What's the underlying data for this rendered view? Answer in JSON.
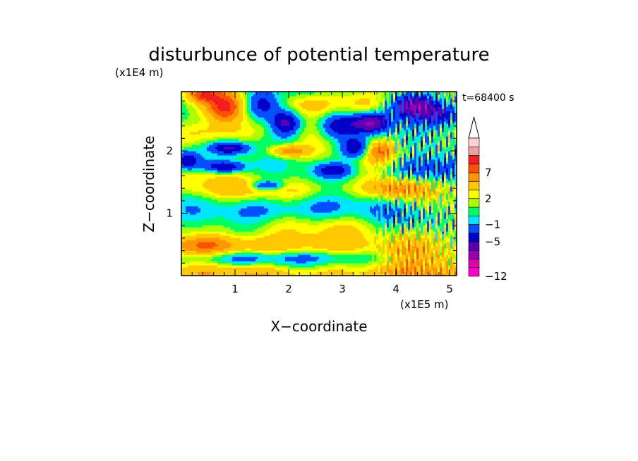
{
  "chart_data": {
    "type": "heatmap",
    "title": "disturbunce of potential temperature",
    "time_label": "t=68400 s",
    "xlabel": "X−coordinate",
    "ylabel": "Z−coordinate",
    "x_unit": "(x1E5 m)",
    "y_unit": "(x1E4 m)",
    "xlim": [
      0,
      5.13
    ],
    "ylim": [
      0,
      2.95
    ],
    "x_ticks": [
      "1",
      "2",
      "3",
      "4",
      "5"
    ],
    "y_ticks": [
      "1",
      "2"
    ],
    "grid": false,
    "colorbar": {
      "levels": [
        -12,
        -11,
        -9,
        -7,
        -5,
        -3,
        -1,
        0,
        1,
        2,
        3,
        5,
        7,
        9,
        11,
        13
      ],
      "tick_labels": [
        "−12",
        "−5",
        "−1",
        "2",
        "7"
      ],
      "tick_values": [
        -12,
        -5,
        -1,
        2,
        7
      ],
      "colors": [
        "#ff00c8",
        "#e000a8",
        "#9600b4",
        "#5a00b0",
        "#0000c8",
        "#0050ff",
        "#00e6ff",
        "#00ff64",
        "#aaff00",
        "#ffff00",
        "#ffc800",
        "#ff9600",
        "#ff5000",
        "#f01e1e",
        "#f5a0a0",
        "#ffd2d2"
      ],
      "extend": "max"
    },
    "features": [
      {
        "x": 2.4,
        "z": 0.02,
        "sx": 3.5,
        "sz": 0.1,
        "v": 3
      },
      {
        "x": 1.5,
        "z": 0.5,
        "sx": 1.1,
        "sz": 0.12,
        "v": 4
      },
      {
        "x": 0.4,
        "z": 0.5,
        "sx": 0.4,
        "sz": 0.1,
        "v": 3
      },
      {
        "x": 1.0,
        "z": 0.28,
        "sx": 0.7,
        "sz": 0.07,
        "v": -3
      },
      {
        "x": 3.0,
        "z": 0.3,
        "sx": 0.8,
        "sz": 0.07,
        "v": -2
      },
      {
        "x": 2.2,
        "z": 0.8,
        "sx": 2.2,
        "sz": 0.14,
        "v": 1
      },
      {
        "x": 1.7,
        "z": 1.05,
        "sx": 0.9,
        "sz": 0.15,
        "v": -3
      },
      {
        "x": 3.0,
        "z": 1.05,
        "sx": 0.8,
        "sz": 0.13,
        "v": -1
      },
      {
        "x": 1.4,
        "z": 1.4,
        "sx": 1.5,
        "sz": 0.1,
        "v": 2
      },
      {
        "x": 1.6,
        "z": 1.45,
        "sx": 0.2,
        "sz": 0.05,
        "v": -6
      },
      {
        "x": 0.3,
        "z": 1.62,
        "sx": 0.4,
        "sz": 0.1,
        "v": 1
      },
      {
        "x": 0.8,
        "z": 2.7,
        "sx": 0.25,
        "sz": 0.18,
        "v": 9
      },
      {
        "x": 0.4,
        "z": 2.9,
        "sx": 0.2,
        "sz": 0.08,
        "v": 6
      },
      {
        "x": 0.6,
        "z": 2.3,
        "sx": 0.5,
        "sz": 0.12,
        "v": 3
      },
      {
        "x": 0.1,
        "z": 1.85,
        "sx": 0.2,
        "sz": 0.12,
        "v": -7
      },
      {
        "x": 0.8,
        "z": 1.75,
        "sx": 0.28,
        "sz": 0.07,
        "v": -7
      },
      {
        "x": 0.9,
        "z": 2.05,
        "sx": 0.25,
        "sz": 0.07,
        "v": -6
      },
      {
        "x": 1.5,
        "z": 2.75,
        "sx": 0.25,
        "sz": 0.18,
        "v": -7
      },
      {
        "x": 1.95,
        "z": 2.45,
        "sx": 0.2,
        "sz": 0.15,
        "v": -7
      },
      {
        "x": 2.0,
        "z": 2.0,
        "sx": 0.25,
        "sz": 0.07,
        "v": 6
      },
      {
        "x": 2.4,
        "z": 2.75,
        "sx": 0.4,
        "sz": 0.12,
        "v": 3
      },
      {
        "x": 2.9,
        "z": 2.4,
        "sx": 0.25,
        "sz": 0.15,
        "v": -6
      },
      {
        "x": 3.25,
        "z": 2.05,
        "sx": 0.2,
        "sz": 0.12,
        "v": -7
      },
      {
        "x": 2.85,
        "z": 1.7,
        "sx": 0.25,
        "sz": 0.08,
        "v": -5
      },
      {
        "x": 3.55,
        "z": 2.45,
        "sx": 0.25,
        "sz": 0.12,
        "v": -8
      },
      {
        "x": 3.7,
        "z": 2.0,
        "sx": 0.2,
        "sz": 0.12,
        "v": 5
      },
      {
        "x": 3.4,
        "z": 2.75,
        "sx": 0.3,
        "sz": 0.15,
        "v": 4
      },
      {
        "x": 4.3,
        "z": 2.75,
        "sx": 0.3,
        "sz": 0.15,
        "v": -8
      },
      {
        "x": 4.9,
        "z": 2.6,
        "sx": 0.3,
        "sz": 0.15,
        "v": -6
      },
      {
        "x": 4.6,
        "z": 1.7,
        "sx": 0.5,
        "sz": 0.15,
        "v": -5
      },
      {
        "x": 4.0,
        "z": 1.4,
        "sx": 0.4,
        "sz": 0.12,
        "v": 5
      },
      {
        "x": 4.6,
        "z": 0.4,
        "sx": 0.5,
        "sz": 0.25,
        "v": 4
      },
      {
        "x": 4.3,
        "z": 0.9,
        "sx": 0.4,
        "sz": 0.15,
        "v": -2
      }
    ]
  }
}
